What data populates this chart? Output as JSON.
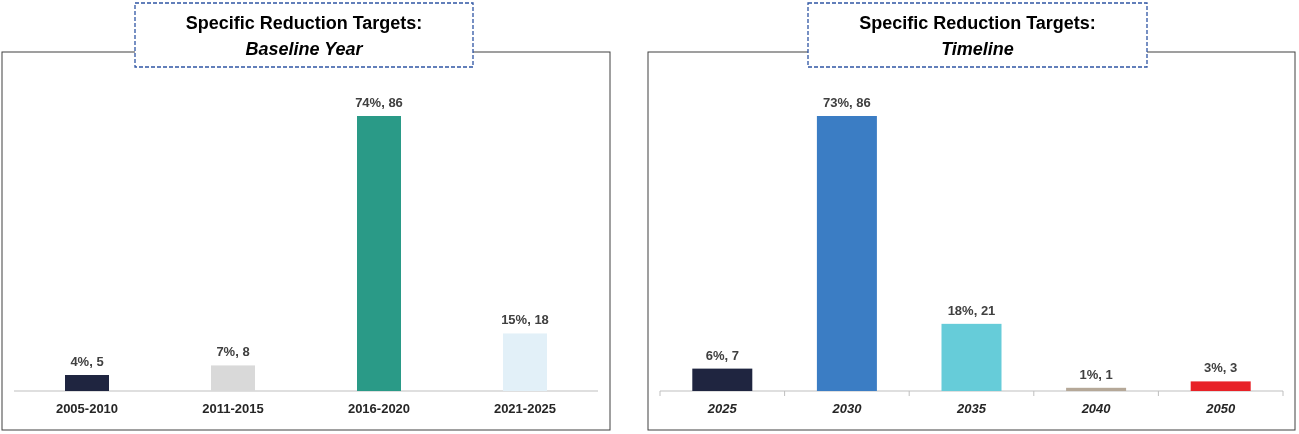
{
  "chart_data": [
    {
      "type": "bar",
      "title": "Specific Reduction Targets:",
      "subtitle": "Baseline Year",
      "categories": [
        "2005-2010",
        "2011-2015",
        "2016-2020",
        "2021-2025"
      ],
      "values": [
        5,
        8,
        86,
        18
      ],
      "colors": [
        "#1f2540",
        "#d9d9d9",
        "#2a9a87",
        "#e2f0f8"
      ],
      "value_labels": [
        "4%, 5",
        "7%, 8",
        "74%, 86",
        "15%, 18"
      ]
    },
    {
      "type": "bar",
      "title": "Specific Reduction Targets:",
      "subtitle": "Timeline",
      "categories": [
        "2025",
        "2030",
        "2035",
        "2040",
        "2050"
      ],
      "values": [
        7,
        86,
        21,
        1,
        3
      ],
      "colors": [
        "#1f2540",
        "#3b7dc4",
        "#66ccd9",
        "#b5a898",
        "#e82127"
      ],
      "value_labels": [
        "6%, 7",
        "73%, 86",
        "18%, 21",
        "1%, 1",
        "3%, 3"
      ]
    }
  ]
}
